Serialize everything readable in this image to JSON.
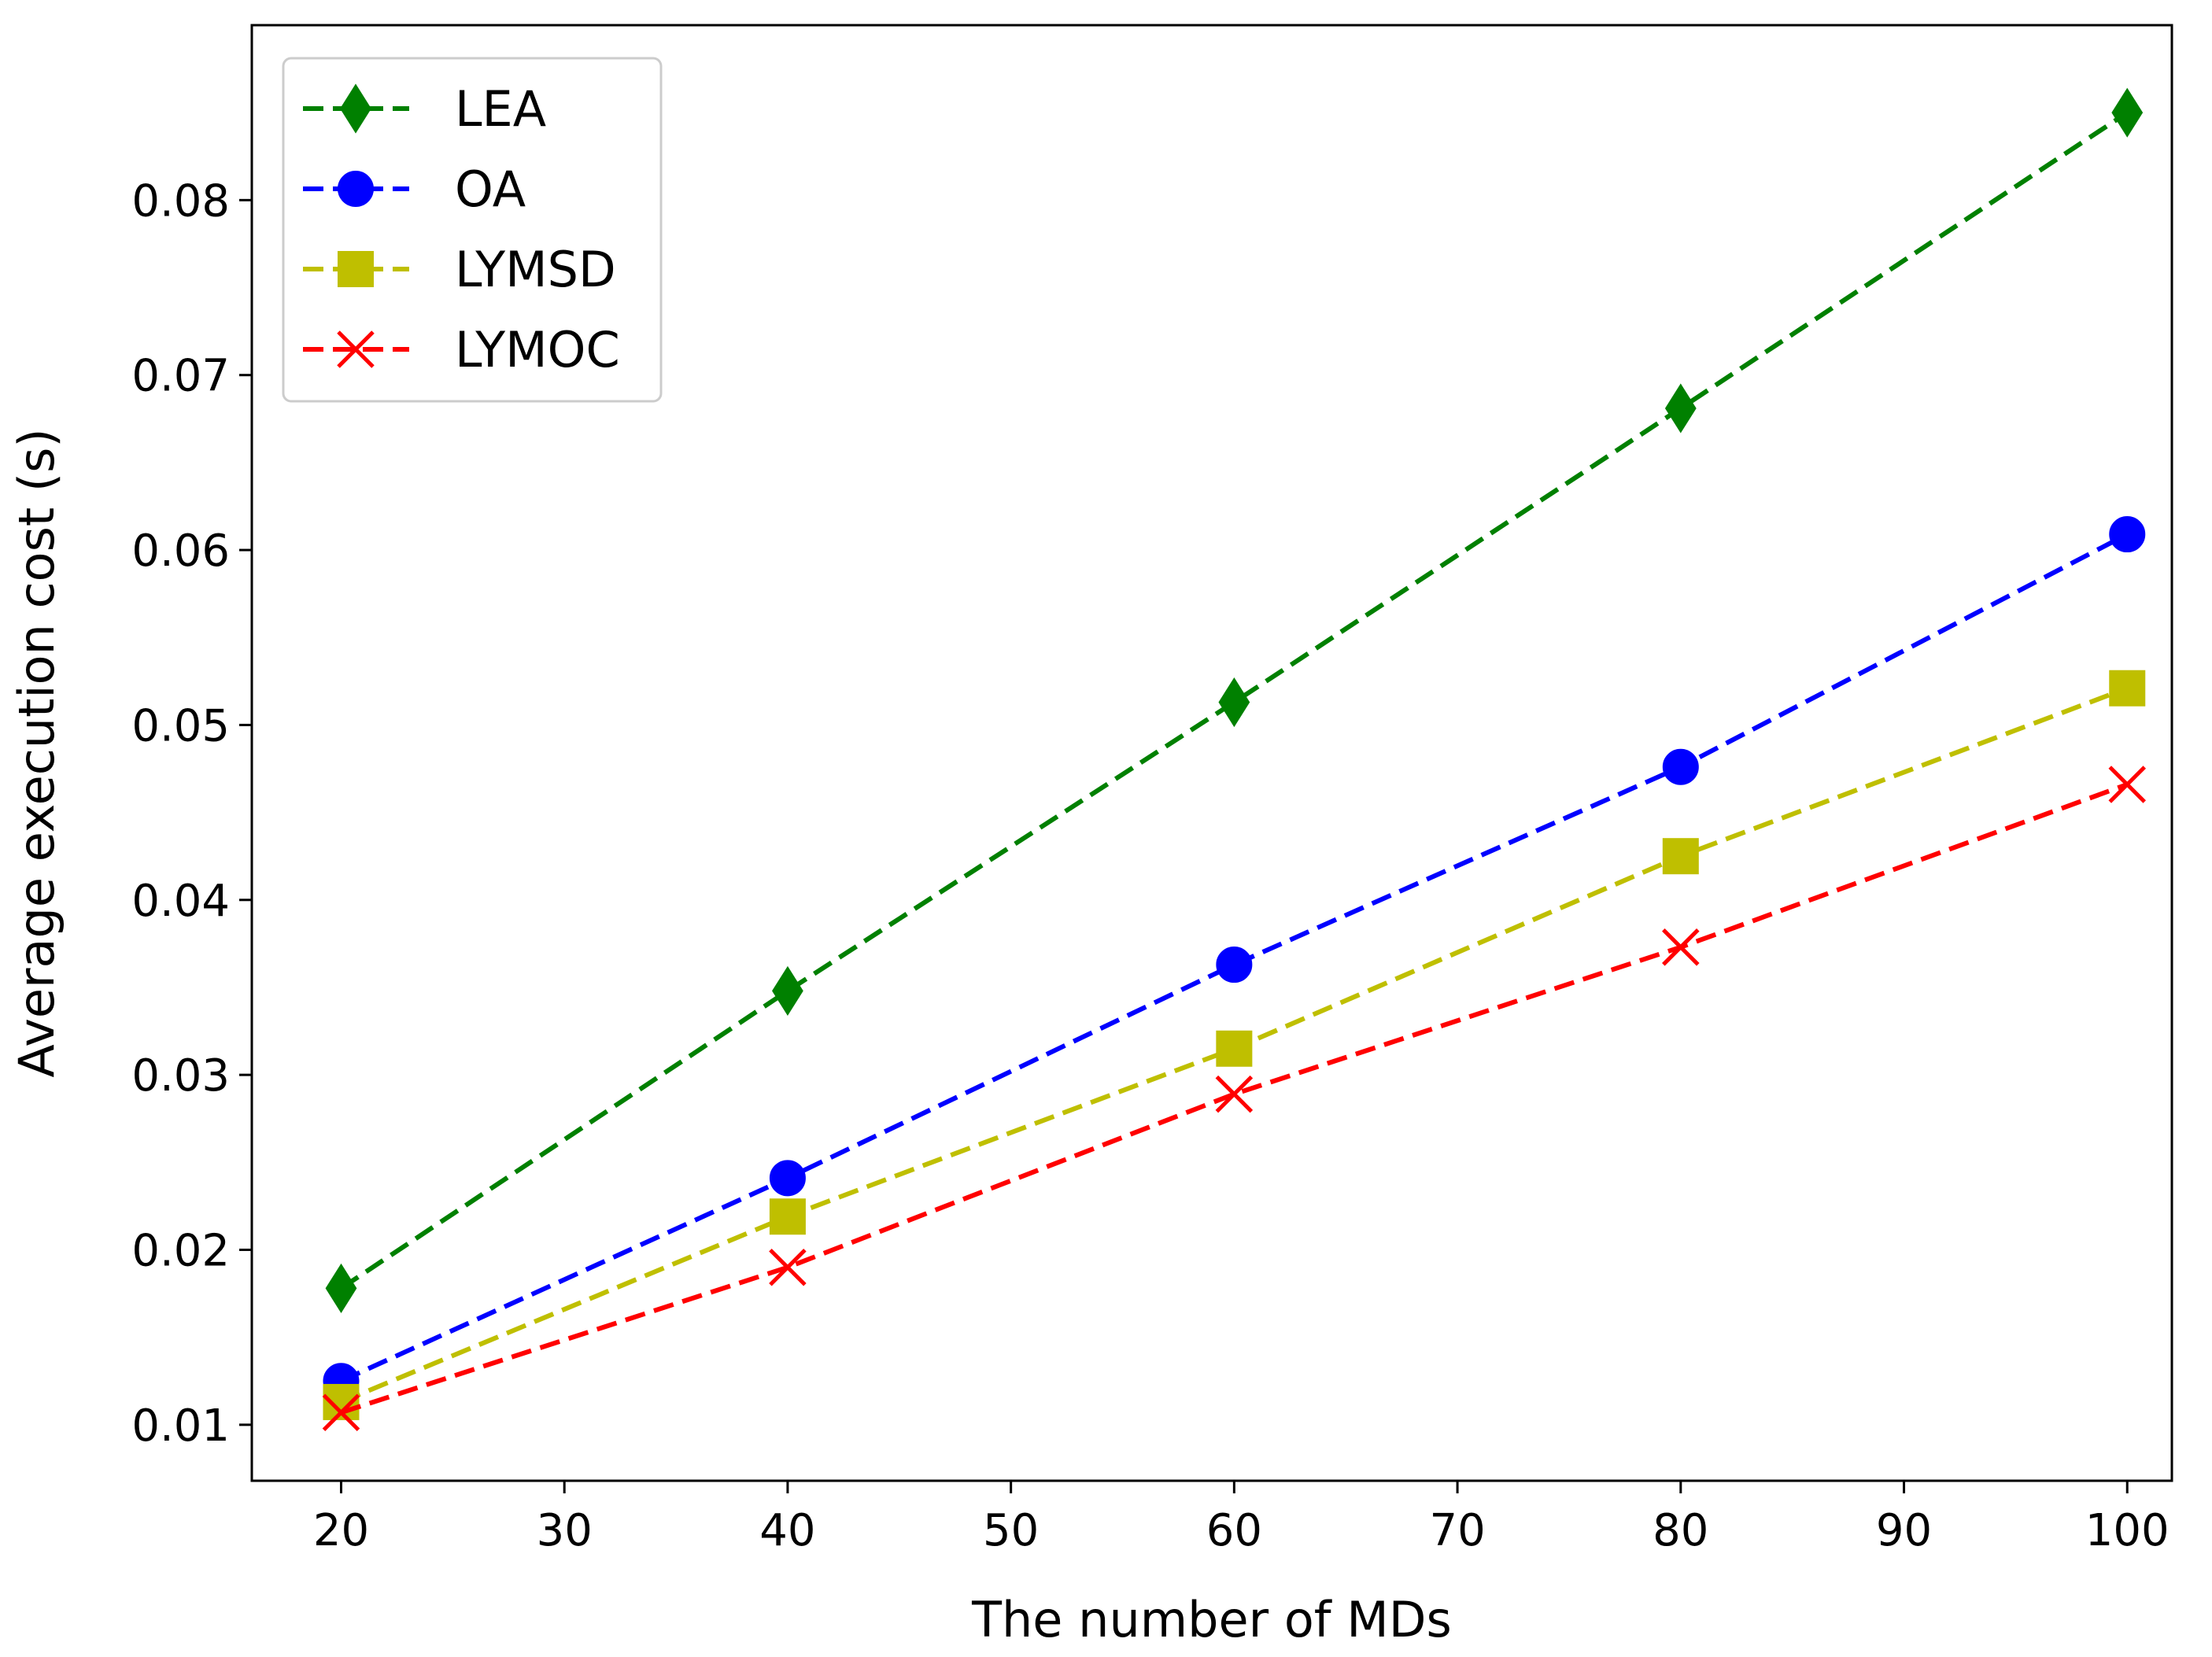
{
  "chart_data": {
    "type": "line",
    "title": "",
    "xlabel": "The number of MDs",
    "ylabel": "Average execution cost (s)",
    "x": [
      20,
      40,
      60,
      80,
      100
    ],
    "xlim": [
      16,
      102
    ],
    "ylim": [
      0.0068,
      0.09
    ],
    "xticks": [
      20,
      30,
      40,
      50,
      60,
      70,
      80,
      90,
      100
    ],
    "yticks": [
      0.01,
      0.02,
      0.03,
      0.04,
      0.05,
      0.06,
      0.07,
      0.08
    ],
    "ytick_labels": [
      "0.01",
      "0.02",
      "0.03",
      "0.04",
      "0.05",
      "0.06",
      "0.07",
      "0.08"
    ],
    "grid": false,
    "legend_position": "top-left",
    "series": [
      {
        "name": "LEA",
        "color": "#008000",
        "marker": "diamond",
        "linestyle": "dashed",
        "values": [
          0.0178,
          0.0348,
          0.0513,
          0.0681,
          0.085
        ]
      },
      {
        "name": "OA",
        "color": "#0000ff",
        "marker": "circle",
        "linestyle": "dashed",
        "values": [
          0.0125,
          0.0241,
          0.0363,
          0.0476,
          0.0609
        ]
      },
      {
        "name": "LYMSD",
        "color": "#bfbf00",
        "marker": "square",
        "linestyle": "dashed",
        "values": [
          0.0113,
          0.0219,
          0.0315,
          0.0425,
          0.0521
        ]
      },
      {
        "name": "LYMOC",
        "color": "#ff0000",
        "marker": "x",
        "linestyle": "dashed",
        "values": [
          0.0107,
          0.019,
          0.0289,
          0.0373,
          0.0466
        ]
      }
    ]
  }
}
